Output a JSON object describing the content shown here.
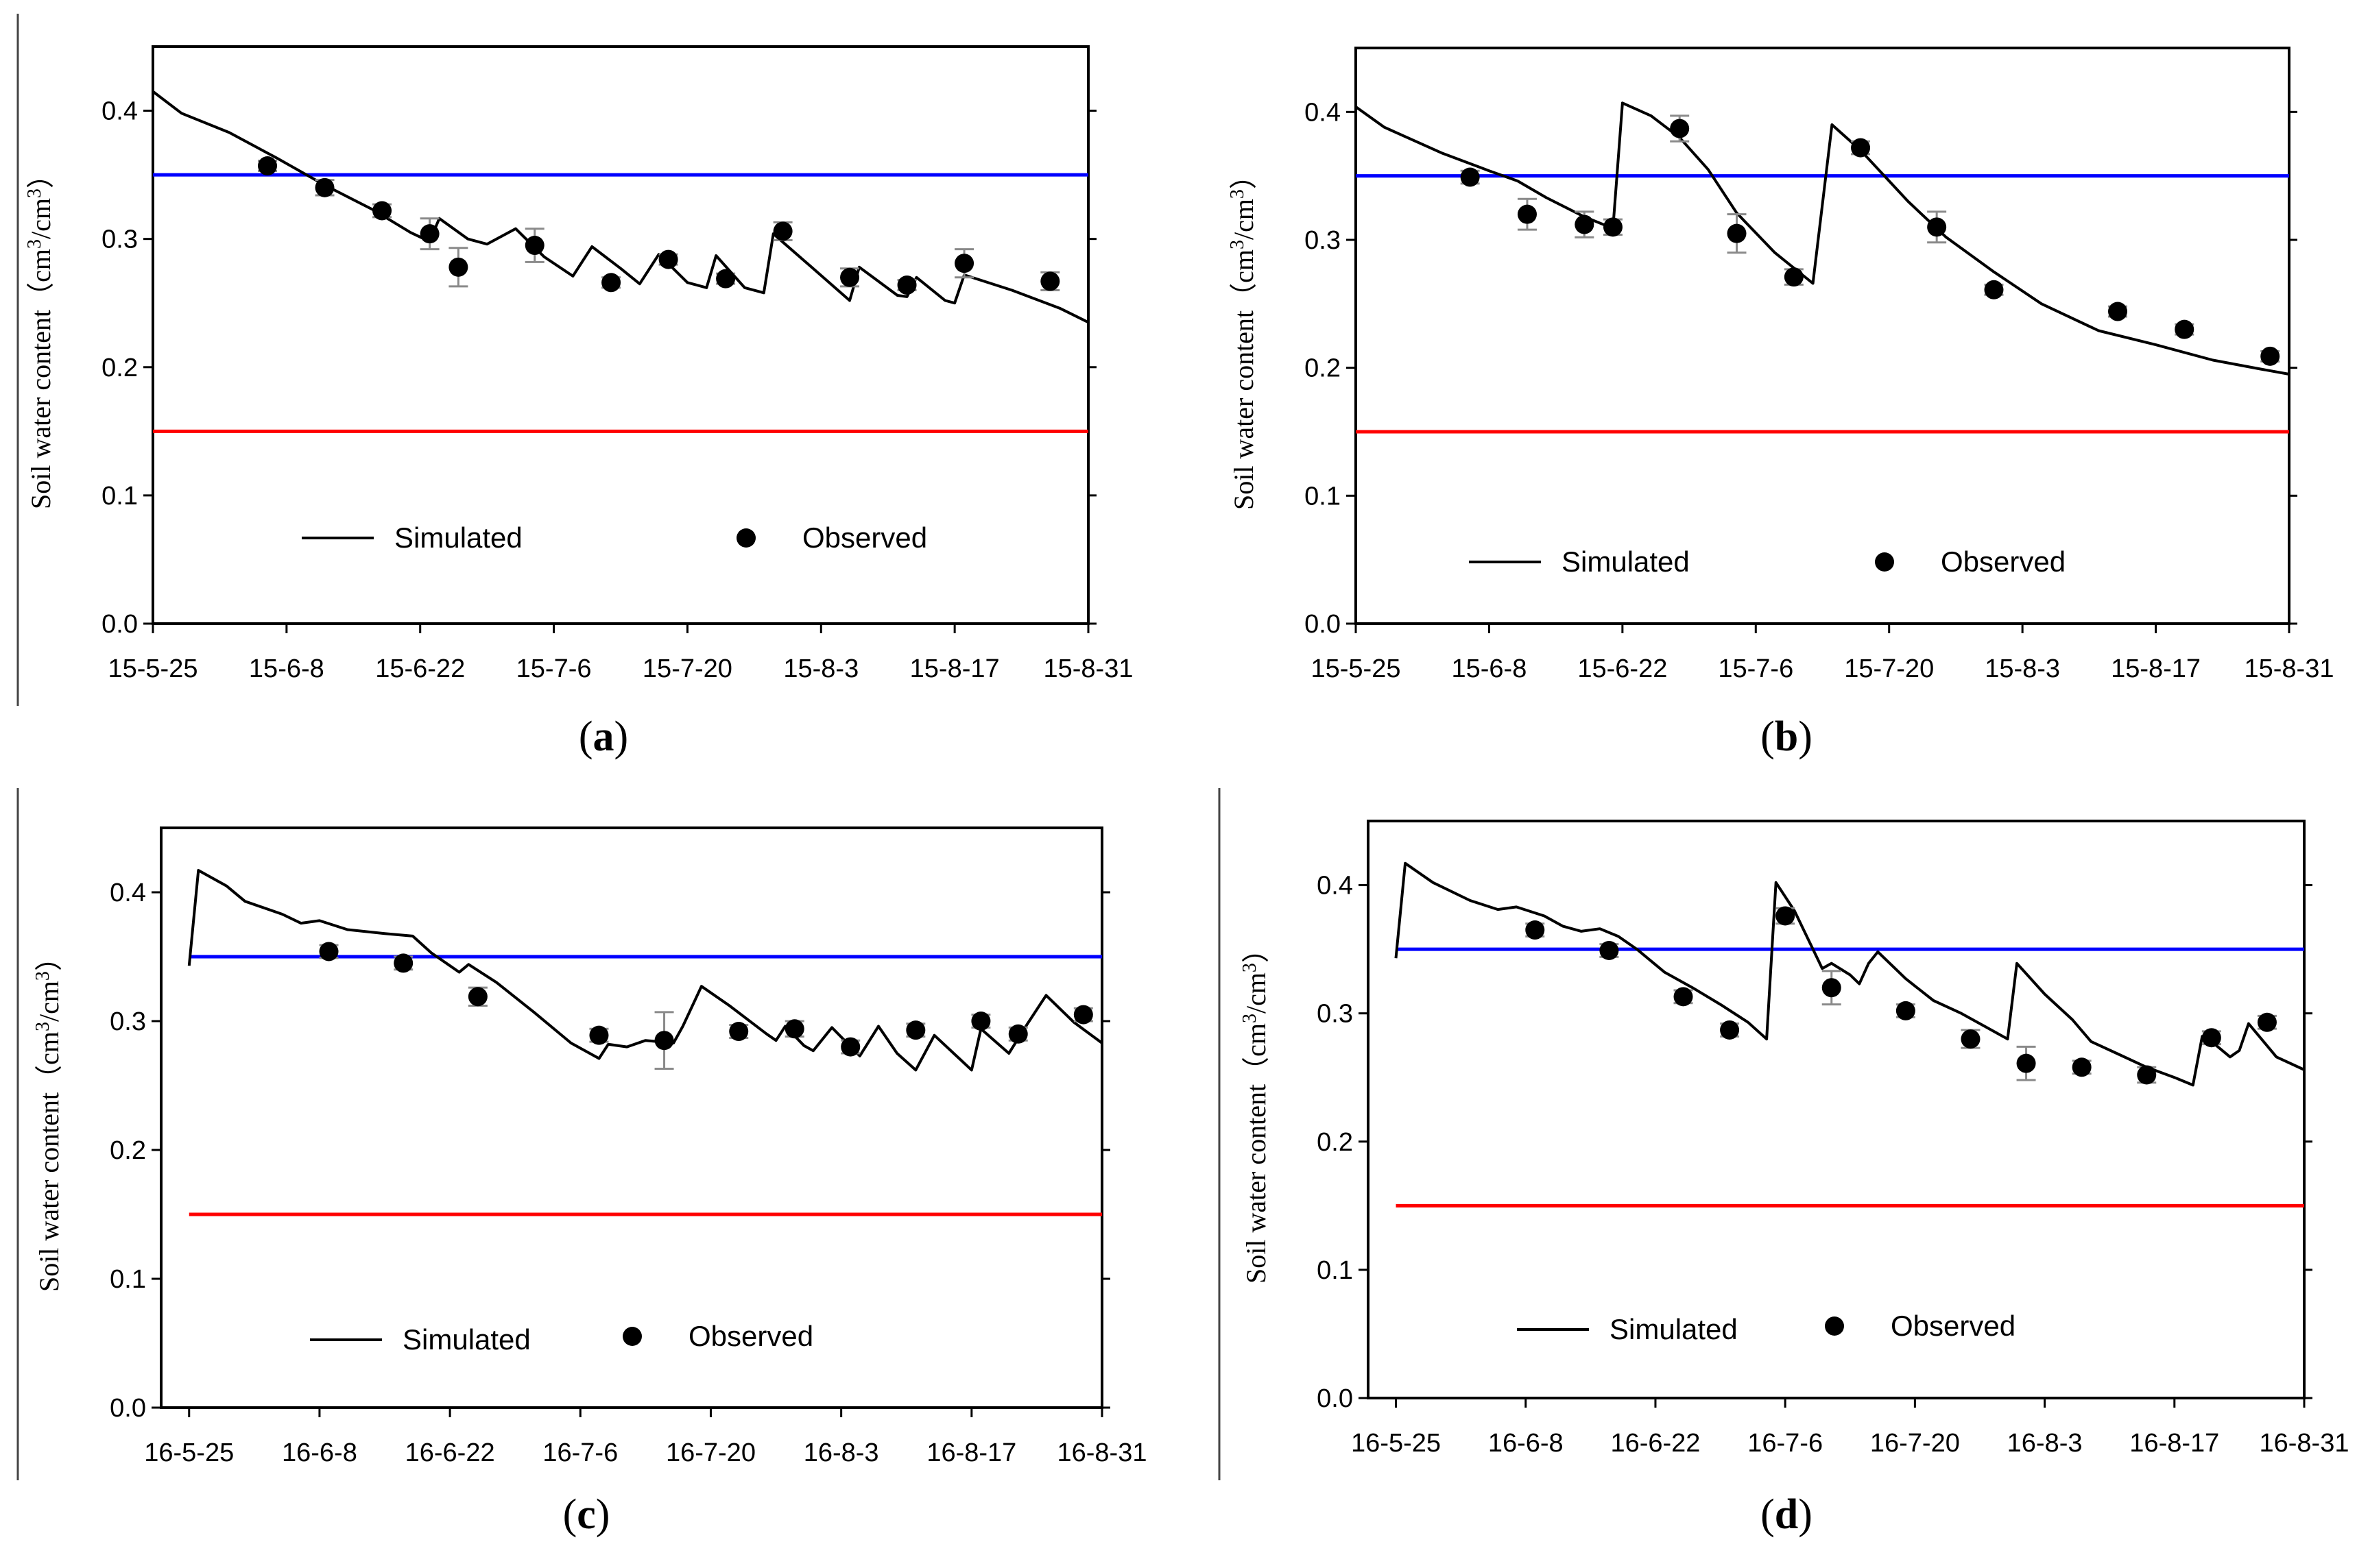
{
  "figure": {
    "line_colors": {
      "simulated": "#000000",
      "upper_threshold": "#0000ff",
      "lower_threshold": "#ff0000",
      "axis": "#000000"
    }
  },
  "chart_data": [
    {
      "id": "a",
      "type": "line",
      "panel_label": "a",
      "ylabel": "Soil water content（cm³/cm³）",
      "ylabel_main": "Soil water content（cm",
      "ylabel_mid": "/cm",
      "ylabel_end": "）",
      "ylabel_sup": "3",
      "ylim": [
        0,
        0.45
      ],
      "yticks": [
        0.0,
        0.1,
        0.2,
        0.3,
        0.4
      ],
      "ytick_labels": [
        "0.0",
        "0.1",
        "0.2",
        "0.3",
        "0.4"
      ],
      "xlim_days": [
        0,
        98
      ],
      "xticks_days": [
        0,
        14,
        28,
        42,
        56,
        70,
        84,
        98
      ],
      "xtick_labels": [
        "15-5-25",
        "15-6-8",
        "15-6-22",
        "15-7-6",
        "15-7-20",
        "15-8-3",
        "15-8-17",
        "15-8-31"
      ],
      "legend": {
        "simulated": "Simulated",
        "observed": "Observed"
      },
      "thresholds": {
        "upper": 0.35,
        "lower": 0.15,
        "start_day": 0
      },
      "simulated": [
        [
          0,
          0.415
        ],
        [
          3,
          0.398
        ],
        [
          8,
          0.383
        ],
        [
          13,
          0.363
        ],
        [
          18,
          0.342
        ],
        [
          23,
          0.323
        ],
        [
          27,
          0.305
        ],
        [
          29,
          0.298
        ],
        [
          30,
          0.316
        ],
        [
          33,
          0.3
        ],
        [
          35,
          0.296
        ],
        [
          38,
          0.308
        ],
        [
          41,
          0.286
        ],
        [
          44,
          0.271
        ],
        [
          46,
          0.294
        ],
        [
          49,
          0.277
        ],
        [
          51,
          0.265
        ],
        [
          53,
          0.288
        ],
        [
          56,
          0.266
        ],
        [
          58,
          0.262
        ],
        [
          59,
          0.287
        ],
        [
          62,
          0.262
        ],
        [
          64,
          0.258
        ],
        [
          65,
          0.304
        ],
        [
          69,
          0.278
        ],
        [
          73,
          0.252
        ],
        [
          74,
          0.278
        ],
        [
          78,
          0.256
        ],
        [
          79,
          0.255
        ],
        [
          80,
          0.27
        ],
        [
          83,
          0.252
        ],
        [
          84,
          0.25
        ],
        [
          85,
          0.272
        ],
        [
          90,
          0.26
        ],
        [
          95,
          0.246
        ],
        [
          98,
          0.235
        ]
      ],
      "observed": [
        {
          "x": 12,
          "y": 0.357,
          "err": 0.004
        },
        {
          "x": 18,
          "y": 0.34,
          "err": 0.006
        },
        {
          "x": 24,
          "y": 0.322,
          "err": 0.005
        },
        {
          "x": 29,
          "y": 0.304,
          "err": 0.012
        },
        {
          "x": 32,
          "y": 0.278,
          "err": 0.015
        },
        {
          "x": 40,
          "y": 0.295,
          "err": 0.013
        },
        {
          "x": 48,
          "y": 0.266,
          "err": 0.004
        },
        {
          "x": 54,
          "y": 0.284,
          "err": 0.004
        },
        {
          "x": 60,
          "y": 0.269,
          "err": 0.004
        },
        {
          "x": 66,
          "y": 0.306,
          "err": 0.007
        },
        {
          "x": 73,
          "y": 0.27,
          "err": 0.007
        },
        {
          "x": 79,
          "y": 0.264,
          "err": 0.004
        },
        {
          "x": 85,
          "y": 0.281,
          "err": 0.011
        },
        {
          "x": 94,
          "y": 0.267,
          "err": 0.007
        }
      ]
    },
    {
      "id": "b",
      "type": "line",
      "panel_label": "b",
      "ylabel": "Soil water content（cm³/cm³）",
      "ylabel_main": "Soil water content（cm",
      "ylabel_mid": "/cm",
      "ylabel_end": "）",
      "ylabel_sup": "3",
      "ylim": [
        0,
        0.45
      ],
      "yticks": [
        0.0,
        0.1,
        0.2,
        0.3,
        0.4
      ],
      "ytick_labels": [
        "0.0",
        "0.1",
        "0.2",
        "0.3",
        "0.4"
      ],
      "xlim_days": [
        0,
        98
      ],
      "xticks_days": [
        0,
        14,
        28,
        42,
        56,
        70,
        84,
        98
      ],
      "xtick_labels": [
        "15-5-25",
        "15-6-8",
        "15-6-22",
        "15-7-6",
        "15-7-20",
        "15-8-3",
        "15-8-17",
        "15-8-31"
      ],
      "legend": {
        "simulated": "Simulated",
        "observed": "Observed"
      },
      "thresholds": {
        "upper": 0.35,
        "lower": 0.15,
        "start_day": 0
      },
      "simulated": [
        [
          0,
          0.404
        ],
        [
          3,
          0.388
        ],
        [
          9,
          0.368
        ],
        [
          14,
          0.354
        ],
        [
          17,
          0.346
        ],
        [
          20,
          0.333
        ],
        [
          24,
          0.318
        ],
        [
          27,
          0.309
        ],
        [
          28,
          0.407
        ],
        [
          31,
          0.397
        ],
        [
          34,
          0.38
        ],
        [
          37,
          0.355
        ],
        [
          40,
          0.321
        ],
        [
          44,
          0.29
        ],
        [
          48,
          0.266
        ],
        [
          50,
          0.39
        ],
        [
          53,
          0.37
        ],
        [
          58,
          0.33
        ],
        [
          62,
          0.302
        ],
        [
          67,
          0.275
        ],
        [
          72,
          0.25
        ],
        [
          78,
          0.229
        ],
        [
          84,
          0.218
        ],
        [
          90,
          0.206
        ],
        [
          95,
          0.199
        ],
        [
          98,
          0.195
        ]
      ],
      "observed": [
        {
          "x": 12,
          "y": 0.349,
          "err": 0.005
        },
        {
          "x": 18,
          "y": 0.32,
          "err": 0.012
        },
        {
          "x": 24,
          "y": 0.312,
          "err": 0.01
        },
        {
          "x": 27,
          "y": 0.31,
          "err": 0.006
        },
        {
          "x": 34,
          "y": 0.387,
          "err": 0.01
        },
        {
          "x": 40,
          "y": 0.305,
          "err": 0.015
        },
        {
          "x": 46,
          "y": 0.271,
          "err": 0.006
        },
        {
          "x": 53,
          "y": 0.372,
          "err": 0.005
        },
        {
          "x": 61,
          "y": 0.31,
          "err": 0.012
        },
        {
          "x": 67,
          "y": 0.261,
          "err": 0.004
        },
        {
          "x": 80,
          "y": 0.244,
          "err": 0.004
        },
        {
          "x": 87,
          "y": 0.23,
          "err": 0.004
        },
        {
          "x": 96,
          "y": 0.209,
          "err": 0.004
        }
      ]
    },
    {
      "id": "c",
      "type": "line",
      "panel_label": "c",
      "ylabel": "Soil water content（cm³/cm³）",
      "ylabel_main": "Soil water content（cm",
      "ylabel_mid": "/cm",
      "ylabel_end": "）",
      "ylabel_sup": "3",
      "ylim": [
        0,
        0.45
      ],
      "yticks": [
        0.0,
        0.1,
        0.2,
        0.3,
        0.4
      ],
      "ytick_labels": [
        "0.0",
        "0.1",
        "0.2",
        "0.3",
        "0.4"
      ],
      "xlim_days": [
        -3,
        98
      ],
      "xticks_days": [
        0,
        14,
        28,
        42,
        56,
        70,
        84,
        98
      ],
      "xtick_labels": [
        "16-5-25",
        "16-6-8",
        "16-6-22",
        "16-7-6",
        "16-7-20",
        "16-8-3",
        "16-8-17",
        "16-8-31"
      ],
      "legend": {
        "simulated": "Simulated",
        "observed": "Observed"
      },
      "thresholds": {
        "upper": 0.35,
        "lower": 0.15,
        "start_day": 0
      },
      "simulated": [
        [
          0,
          0.343
        ],
        [
          1,
          0.417
        ],
        [
          4,
          0.405
        ],
        [
          6,
          0.393
        ],
        [
          10,
          0.383
        ],
        [
          12,
          0.376
        ],
        [
          14,
          0.378
        ],
        [
          17,
          0.371
        ],
        [
          21,
          0.368
        ],
        [
          24,
          0.366
        ],
        [
          26,
          0.353
        ],
        [
          28,
          0.343
        ],
        [
          29,
          0.338
        ],
        [
          30,
          0.344
        ],
        [
          33,
          0.33
        ],
        [
          37,
          0.307
        ],
        [
          41,
          0.283
        ],
        [
          44,
          0.271
        ],
        [
          45,
          0.282
        ],
        [
          47,
          0.28
        ],
        [
          49,
          0.285
        ],
        [
          52,
          0.283
        ],
        [
          53,
          0.296
        ],
        [
          55,
          0.327
        ],
        [
          58,
          0.312
        ],
        [
          62,
          0.29
        ],
        [
          63,
          0.285
        ],
        [
          64,
          0.296
        ],
        [
          66,
          0.281
        ],
        [
          67,
          0.277
        ],
        [
          69,
          0.295
        ],
        [
          72,
          0.273
        ],
        [
          74,
          0.296
        ],
        [
          76,
          0.275
        ],
        [
          78,
          0.262
        ],
        [
          80,
          0.289
        ],
        [
          84,
          0.262
        ],
        [
          85,
          0.294
        ],
        [
          88,
          0.275
        ],
        [
          90,
          0.298
        ],
        [
          92,
          0.32
        ],
        [
          95,
          0.299
        ],
        [
          98,
          0.283
        ]
      ],
      "observed": [
        {
          "x": 15,
          "y": 0.354,
          "err": 0.005
        },
        {
          "x": 23,
          "y": 0.345,
          "err": 0.005
        },
        {
          "x": 31,
          "y": 0.319,
          "err": 0.007
        },
        {
          "x": 44,
          "y": 0.289,
          "err": 0.005
        },
        {
          "x": 51,
          "y": 0.285,
          "err": 0.022
        },
        {
          "x": 59,
          "y": 0.292,
          "err": 0.005
        },
        {
          "x": 65,
          "y": 0.294,
          "err": 0.006
        },
        {
          "x": 71,
          "y": 0.28,
          "err": 0.005
        },
        {
          "x": 78,
          "y": 0.293,
          "err": 0.005
        },
        {
          "x": 85,
          "y": 0.3,
          "err": 0.005
        },
        {
          "x": 89,
          "y": 0.29,
          "err": 0.005
        },
        {
          "x": 96,
          "y": 0.305,
          "err": 0.005
        }
      ]
    },
    {
      "id": "d",
      "type": "line",
      "panel_label": "d",
      "ylabel": "Soil water content（cm³/cm³）",
      "ylabel_main": "Soil water content（cm",
      "ylabel_mid": "/cm",
      "ylabel_end": "）",
      "ylabel_sup": "3",
      "ylim": [
        0,
        0.45
      ],
      "yticks": [
        0.0,
        0.1,
        0.2,
        0.3,
        0.4
      ],
      "ytick_labels": [
        "0.0",
        "0.1",
        "0.2",
        "0.3",
        "0.4"
      ],
      "xlim_days": [
        -3,
        98
      ],
      "xticks_days": [
        0,
        14,
        28,
        42,
        56,
        70,
        84,
        98
      ],
      "xtick_labels": [
        "16-5-25",
        "16-6-8",
        "16-6-22",
        "16-7-6",
        "16-7-20",
        "16-8-3",
        "16-8-17",
        "16-8-31"
      ],
      "legend": {
        "simulated": "Simulated",
        "observed": "Observed"
      },
      "thresholds": {
        "upper": 0.35,
        "lower": 0.15,
        "start_day": 0
      },
      "simulated": [
        [
          0,
          0.343
        ],
        [
          1,
          0.417
        ],
        [
          4,
          0.402
        ],
        [
          8,
          0.388
        ],
        [
          11,
          0.381
        ],
        [
          13,
          0.383
        ],
        [
          16,
          0.376
        ],
        [
          18,
          0.368
        ],
        [
          20,
          0.364
        ],
        [
          22,
          0.366
        ],
        [
          24,
          0.36
        ],
        [
          26,
          0.35
        ],
        [
          29,
          0.332
        ],
        [
          32,
          0.32
        ],
        [
          35,
          0.307
        ],
        [
          38,
          0.293
        ],
        [
          40,
          0.28
        ],
        [
          41,
          0.402
        ],
        [
          43,
          0.38
        ],
        [
          45,
          0.35
        ],
        [
          46,
          0.335
        ],
        [
          47,
          0.339
        ],
        [
          49,
          0.33
        ],
        [
          50,
          0.323
        ],
        [
          51,
          0.339
        ],
        [
          52,
          0.348
        ],
        [
          55,
          0.327
        ],
        [
          58,
          0.31
        ],
        [
          61,
          0.3
        ],
        [
          64,
          0.288
        ],
        [
          66,
          0.28
        ],
        [
          67,
          0.339
        ],
        [
          70,
          0.315
        ],
        [
          73,
          0.295
        ],
        [
          75,
          0.278
        ],
        [
          78,
          0.268
        ],
        [
          81,
          0.258
        ],
        [
          84,
          0.25
        ],
        [
          86,
          0.244
        ],
        [
          87,
          0.282
        ],
        [
          88,
          0.278
        ],
        [
          90,
          0.266
        ],
        [
          91,
          0.271
        ],
        [
          92,
          0.292
        ],
        [
          95,
          0.266
        ],
        [
          98,
          0.256
        ]
      ],
      "observed": [
        {
          "x": 15,
          "y": 0.365,
          "err": 0.005
        },
        {
          "x": 23,
          "y": 0.349,
          "err": 0.005
        },
        {
          "x": 31,
          "y": 0.313,
          "err": 0.005
        },
        {
          "x": 36,
          "y": 0.287,
          "err": 0.005
        },
        {
          "x": 42,
          "y": 0.376,
          "err": 0.006
        },
        {
          "x": 47,
          "y": 0.32,
          "err": 0.013
        },
        {
          "x": 55,
          "y": 0.302,
          "err": 0.005
        },
        {
          "x": 62,
          "y": 0.28,
          "err": 0.007
        },
        {
          "x": 68,
          "y": 0.261,
          "err": 0.013
        },
        {
          "x": 74,
          "y": 0.258,
          "err": 0.005
        },
        {
          "x": 81,
          "y": 0.252,
          "err": 0.006
        },
        {
          "x": 88,
          "y": 0.281,
          "err": 0.005
        },
        {
          "x": 94,
          "y": 0.293,
          "err": 0.005
        }
      ]
    }
  ]
}
